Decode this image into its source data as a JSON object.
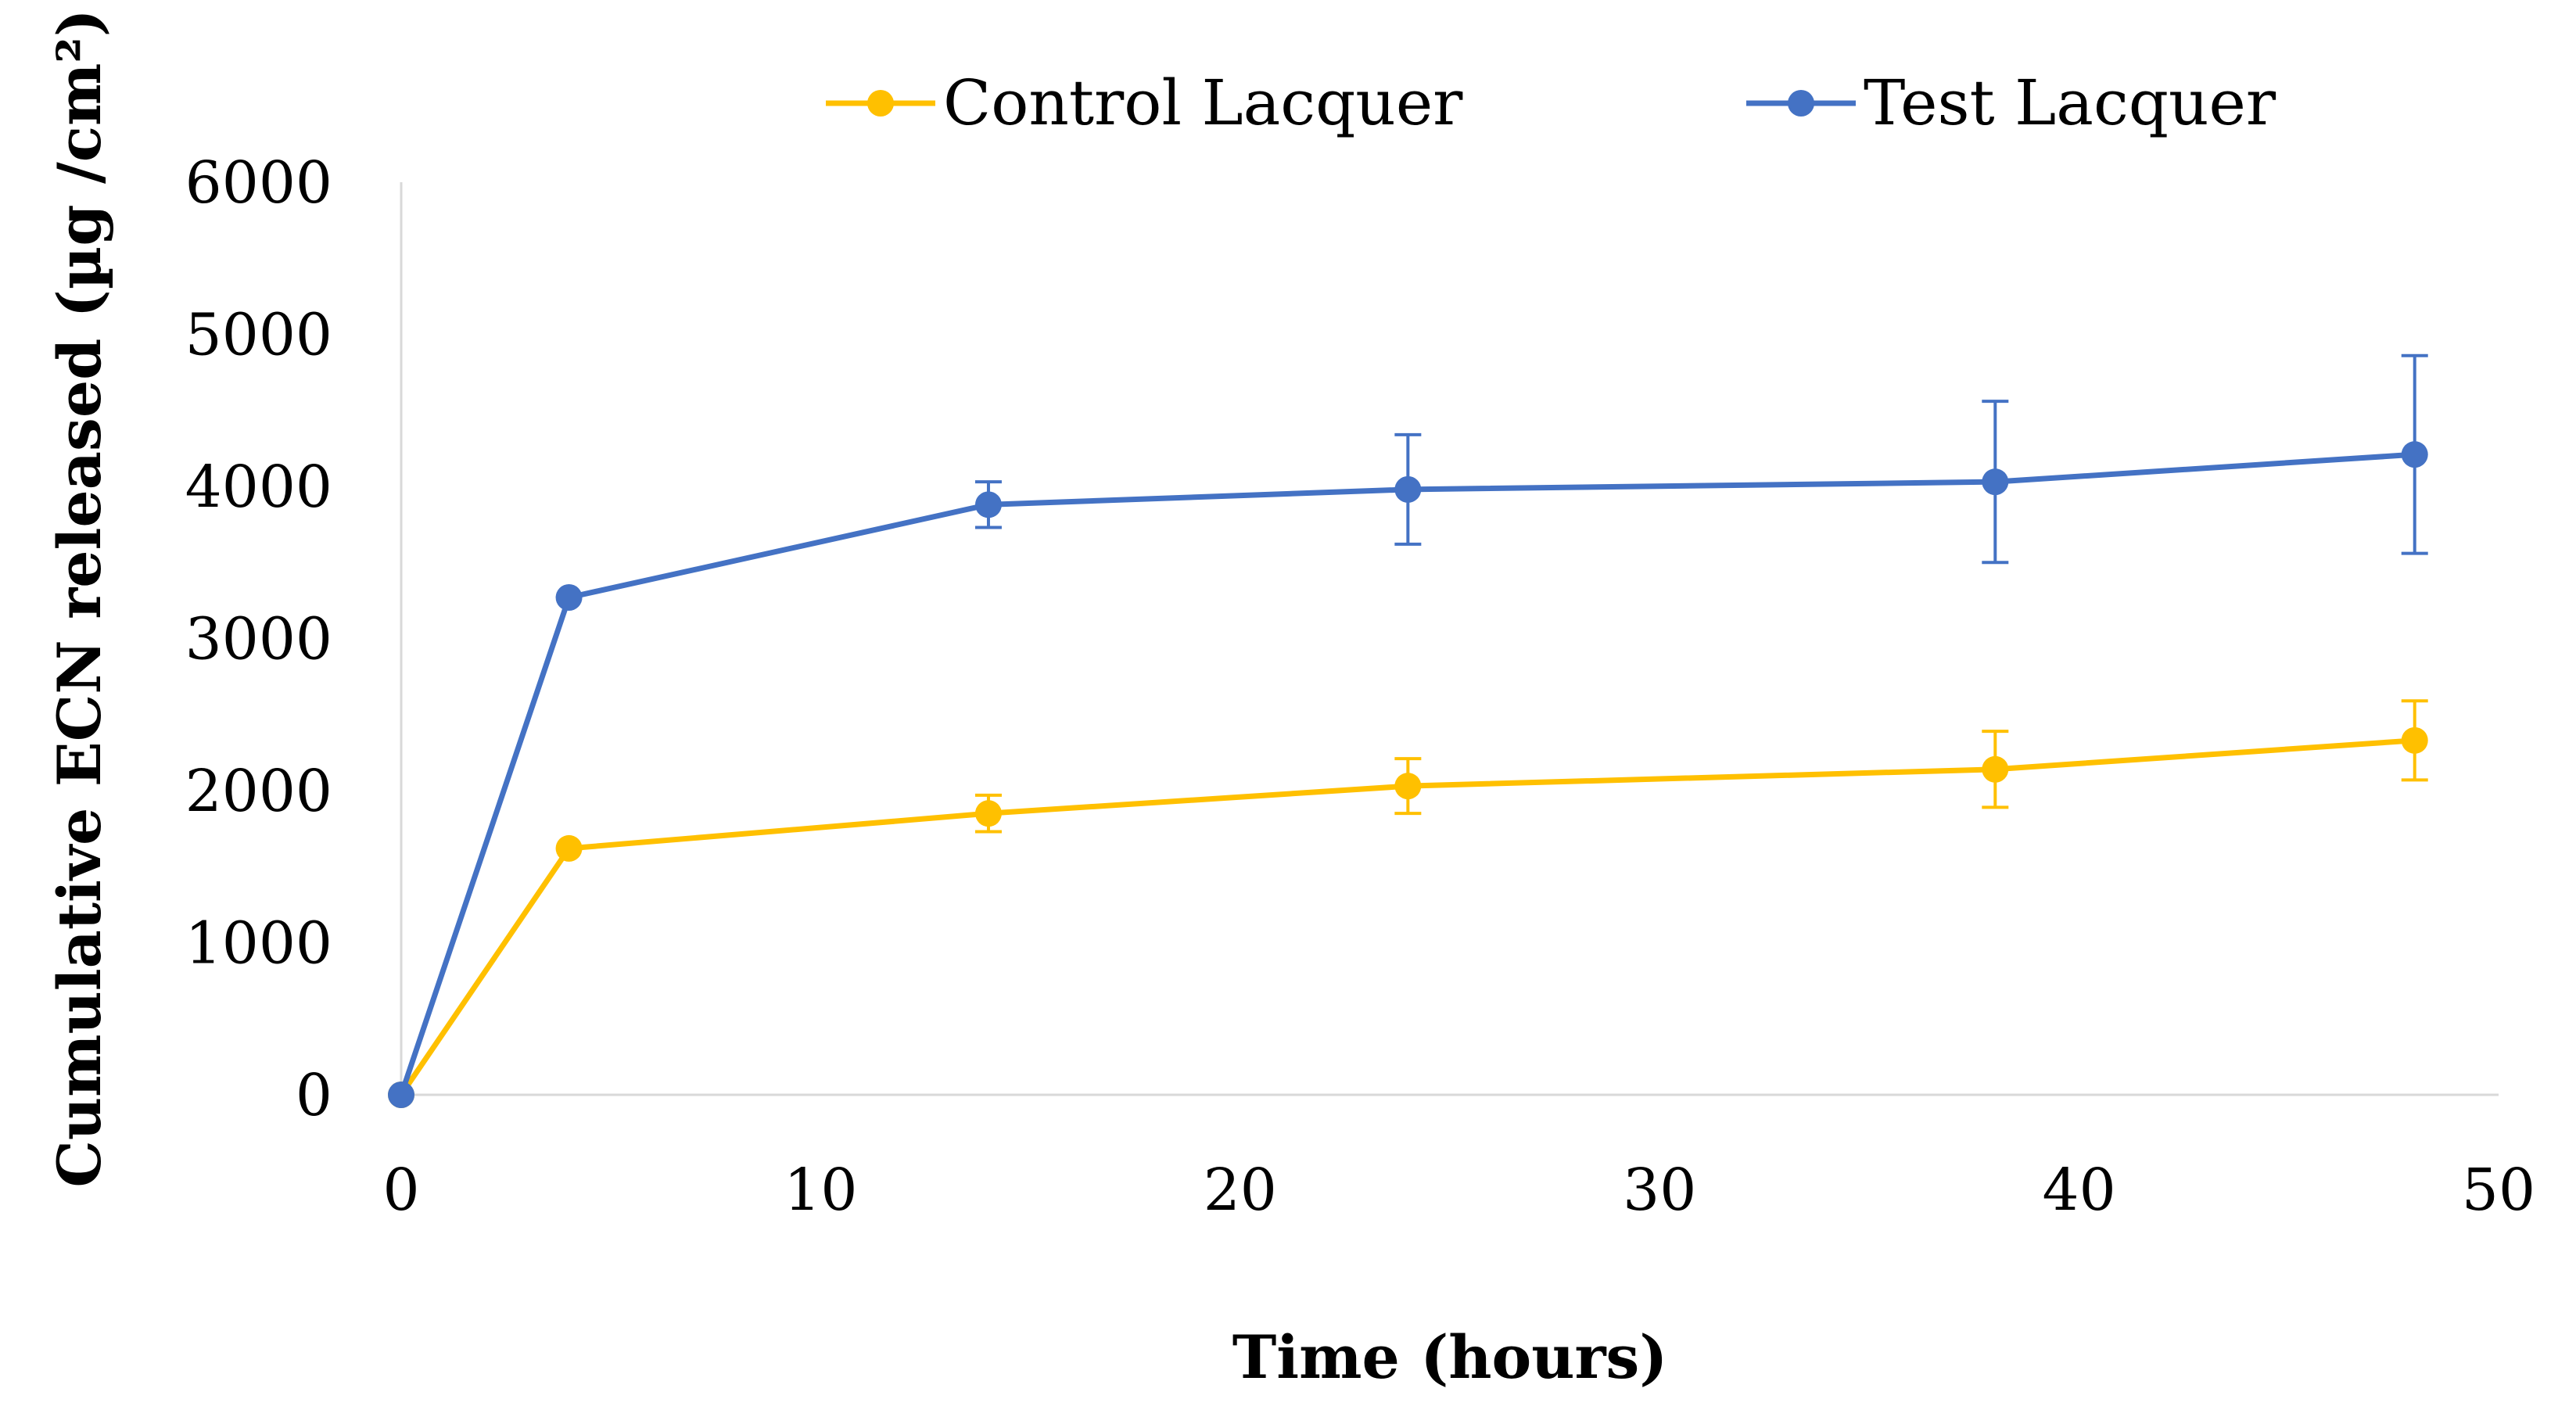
{
  "chart_data": {
    "type": "line",
    "title": "",
    "xlabel": "Time (hours)",
    "ylabel": "Cumulative ECN released (µg /cm²)",
    "xlim": [
      0,
      50
    ],
    "ylim": [
      0,
      6000
    ],
    "xticks": [
      0,
      10,
      20,
      30,
      40,
      50
    ],
    "yticks": [
      0,
      1000,
      2000,
      3000,
      4000,
      5000,
      6000
    ],
    "grid": false,
    "legend_position": "top",
    "x": [
      0,
      4,
      14,
      24,
      38,
      48
    ],
    "series": [
      {
        "name": "Control Lacquer",
        "color": "#FFC000",
        "values": [
          0,
          1620,
          1850,
          2030,
          2140,
          2330
        ],
        "errors": [
          0,
          0,
          120,
          180,
          250,
          260
        ]
      },
      {
        "name": "Test Lacquer",
        "color": "#4472C4",
        "values": [
          0,
          3270,
          3880,
          3980,
          4030,
          4210
        ],
        "errors": [
          0,
          0,
          150,
          360,
          530,
          650
        ]
      }
    ]
  }
}
